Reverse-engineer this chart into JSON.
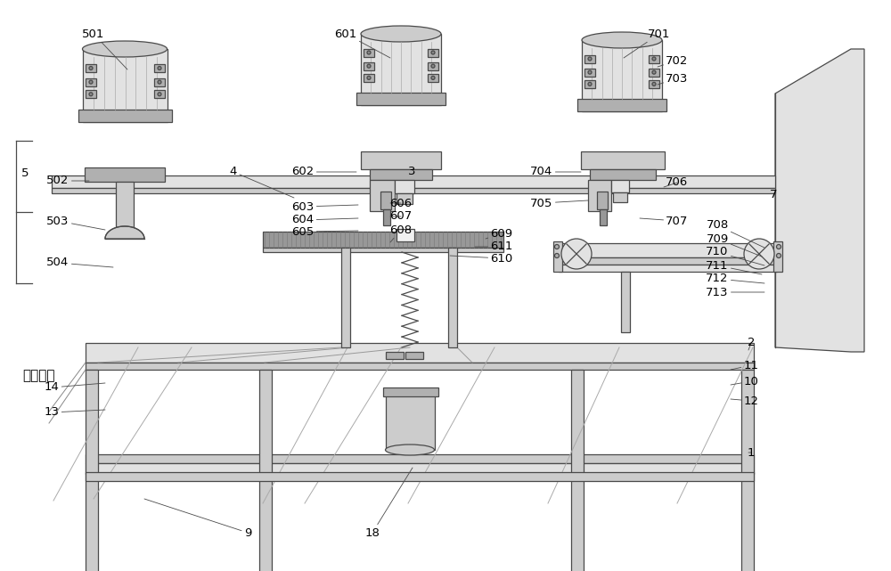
{
  "bg_color": "#ffffff",
  "lc": "#4a4a4a",
  "lw": 0.9,
  "fig_w": 10.0,
  "fig_h": 6.41,
  "dpi": 100,
  "labels": [
    [
      "501",
      105,
      38,
      143,
      78,
      true
    ],
    [
      "5",
      28,
      195,
      57,
      195,
      false
    ],
    [
      "502",
      65,
      203,
      100,
      203,
      true
    ],
    [
      "503",
      65,
      248,
      118,
      258,
      true
    ],
    [
      "504",
      65,
      295,
      127,
      300,
      true
    ],
    [
      "4",
      262,
      193,
      330,
      222,
      true
    ],
    [
      "601",
      388,
      38,
      438,
      65,
      true
    ],
    [
      "602",
      340,
      193,
      400,
      193,
      true
    ],
    [
      "3",
      462,
      193,
      462,
      193,
      false
    ],
    [
      "603",
      340,
      232,
      402,
      230,
      true
    ],
    [
      "604",
      340,
      247,
      402,
      245,
      true
    ],
    [
      "605",
      340,
      260,
      402,
      259,
      true
    ],
    [
      "606",
      450,
      228,
      438,
      228,
      true
    ],
    [
      "607",
      450,
      243,
      438,
      243,
      true
    ],
    [
      "608",
      450,
      258,
      438,
      272,
      true
    ],
    [
      "609",
      563,
      262,
      545,
      268,
      true
    ],
    [
      "611",
      563,
      277,
      533,
      277,
      true
    ],
    [
      "610",
      563,
      290,
      505,
      287,
      true
    ],
    [
      "701",
      740,
      38,
      700,
      65,
      true
    ],
    [
      "702",
      760,
      68,
      738,
      75,
      true
    ],
    [
      "703",
      760,
      88,
      738,
      95,
      true
    ],
    [
      "704",
      608,
      193,
      652,
      193,
      true
    ],
    [
      "705",
      608,
      228,
      660,
      225,
      true
    ],
    [
      "706",
      760,
      205,
      745,
      210,
      true
    ],
    [
      "707",
      760,
      248,
      718,
      245,
      true
    ],
    [
      "708",
      805,
      253,
      858,
      278,
      true
    ],
    [
      "709",
      805,
      268,
      855,
      288,
      true
    ],
    [
      "710",
      805,
      283,
      858,
      298,
      true
    ],
    [
      "711",
      805,
      298,
      855,
      308,
      true
    ],
    [
      "712",
      805,
      313,
      858,
      318,
      true
    ],
    [
      "713",
      805,
      328,
      858,
      328,
      true
    ],
    [
      "7",
      868,
      218,
      905,
      220,
      false
    ],
    [
      "2",
      843,
      385,
      840,
      393,
      true
    ],
    [
      "11",
      843,
      410,
      820,
      415,
      true
    ],
    [
      "10",
      843,
      428,
      820,
      432,
      true
    ],
    [
      "12",
      843,
      450,
      820,
      448,
      true
    ],
    [
      "1",
      843,
      508,
      840,
      508,
      true
    ],
    [
      "14",
      58,
      435,
      118,
      430,
      true
    ],
    [
      "13",
      58,
      463,
      118,
      460,
      true
    ],
    [
      "9",
      278,
      598,
      162,
      560,
      true
    ],
    [
      "18",
      418,
      598,
      463,
      525,
      true
    ],
    [
      "光学玻璃",
      25,
      422,
      0,
      0,
      false
    ]
  ]
}
